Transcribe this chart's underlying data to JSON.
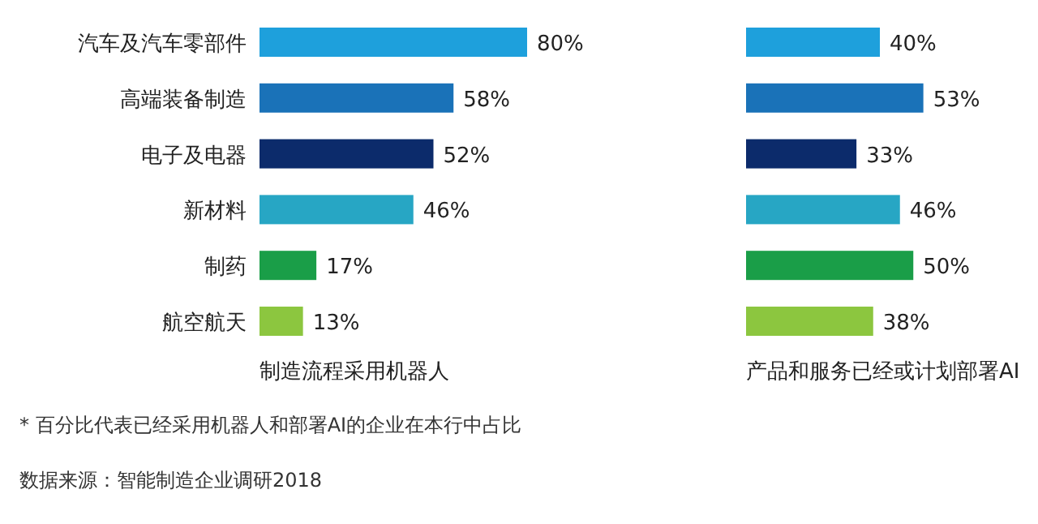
{
  "chart_data": [
    {
      "type": "bar",
      "orientation": "horizontal",
      "categories": [
        "汽车及汽车零部件",
        "高端装备制造",
        "电子及电器",
        "新材料",
        "制药",
        "航空航天"
      ],
      "values": [
        80,
        58,
        52,
        46,
        17,
        13
      ],
      "value_labels": [
        "80%",
        "58%",
        "52%",
        "46%",
        "17%",
        "13%"
      ],
      "colors": [
        "#1ea0dc",
        "#1a72b8",
        "#0c2b6b",
        "#27a6c4",
        "#1a9e48",
        "#8cc63f"
      ],
      "xlabel": "制造流程采用机器人",
      "annotations": [
        "* 百分比代表已经采用机器人和部署AI的企业在本行中占比",
        "数据来源：智能制造企业调研2018"
      ]
    },
    {
      "type": "bar",
      "orientation": "horizontal",
      "categories": [
        null,
        null,
        null,
        null,
        null,
        null
      ],
      "values": [
        40,
        53,
        33,
        46,
        50,
        38
      ],
      "value_labels": [
        "40%",
        "53%",
        "33%",
        "46%",
        "50%",
        "38%"
      ],
      "colors": [
        "#1ea0dc",
        "#1a72b8",
        "#0c2b6b",
        "#27a6c4",
        "#1a9e48",
        "#8cc63f"
      ],
      "xlabel": "产品和服务已经或计划部署AI"
    }
  ]
}
